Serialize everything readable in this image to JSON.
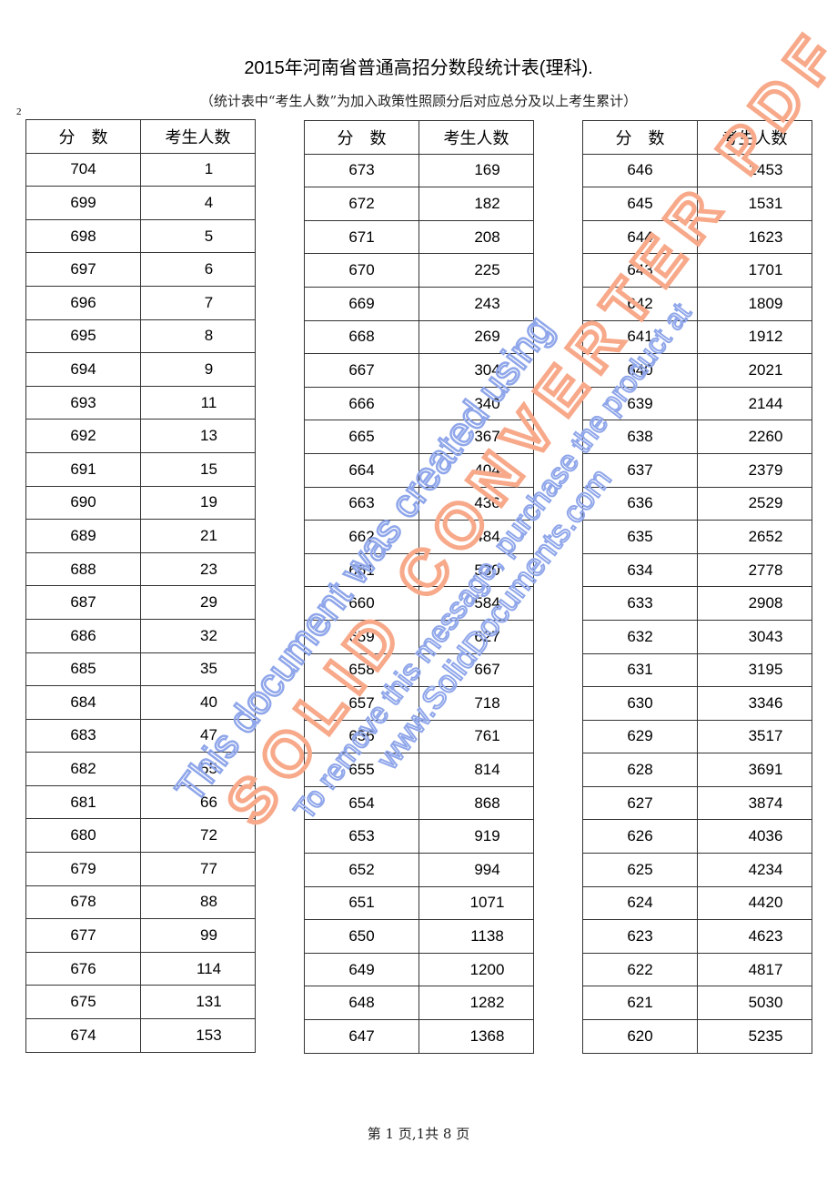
{
  "document": {
    "title": "2015年河南省普通高招分数段统计表(理科).",
    "subtitle": "（统计表中“考生人数”为加入政策性照顾分后对应总分及以上考生累计）",
    "page_mark": "2",
    "footer": "第 1 页,1共 8 页"
  },
  "tables": [
    {
      "headers": [
        "分　数",
        "考生人数"
      ],
      "rows": [
        [
          "704",
          "1"
        ],
        [
          "699",
          "4"
        ],
        [
          "698",
          "5"
        ],
        [
          "697",
          "6"
        ],
        [
          "696",
          "7"
        ],
        [
          "695",
          "8"
        ],
        [
          "694",
          "9"
        ],
        [
          "693",
          "11"
        ],
        [
          "692",
          "13"
        ],
        [
          "691",
          "15"
        ],
        [
          "690",
          "19"
        ],
        [
          "689",
          "21"
        ],
        [
          "688",
          "23"
        ],
        [
          "687",
          "29"
        ],
        [
          "686",
          "32"
        ],
        [
          "685",
          "35"
        ],
        [
          "684",
          "40"
        ],
        [
          "683",
          "47"
        ],
        [
          "682",
          "55"
        ],
        [
          "681",
          "66"
        ],
        [
          "680",
          "72"
        ],
        [
          "679",
          "77"
        ],
        [
          "678",
          "88"
        ],
        [
          "677",
          "99"
        ],
        [
          "676",
          "114"
        ],
        [
          "675",
          "131"
        ],
        [
          "674",
          "153"
        ]
      ]
    },
    {
      "headers": [
        "分　数",
        "考生人数"
      ],
      "rows": [
        [
          "673",
          "169"
        ],
        [
          "672",
          "182"
        ],
        [
          "671",
          "208"
        ],
        [
          "670",
          "225"
        ],
        [
          "669",
          "243"
        ],
        [
          "668",
          "269"
        ],
        [
          "667",
          "304"
        ],
        [
          "666",
          "340"
        ],
        [
          "665",
          "367"
        ],
        [
          "664",
          "404"
        ],
        [
          "663",
          "436"
        ],
        [
          "662",
          "484"
        ],
        [
          "661",
          "530"
        ],
        [
          "660",
          "584"
        ],
        [
          "659",
          "627"
        ],
        [
          "658",
          "667"
        ],
        [
          "657",
          "718"
        ],
        [
          "656",
          "761"
        ],
        [
          "655",
          "814"
        ],
        [
          "654",
          "868"
        ],
        [
          "653",
          "919"
        ],
        [
          "652",
          "994"
        ],
        [
          "651",
          "1071"
        ],
        [
          "650",
          "1138"
        ],
        [
          "649",
          "1200"
        ],
        [
          "648",
          "1282"
        ],
        [
          "647",
          "1368"
        ]
      ]
    },
    {
      "headers": [
        "分　数",
        "考生人数"
      ],
      "rows": [
        [
          "646",
          "1453"
        ],
        [
          "645",
          "1531"
        ],
        [
          "644",
          "1623"
        ],
        [
          "643",
          "1701"
        ],
        [
          "642",
          "1809"
        ],
        [
          "641",
          "1912"
        ],
        [
          "640",
          "2021"
        ],
        [
          "639",
          "2144"
        ],
        [
          "638",
          "2260"
        ],
        [
          "637",
          "2379"
        ],
        [
          "636",
          "2529"
        ],
        [
          "635",
          "2652"
        ],
        [
          "634",
          "2778"
        ],
        [
          "633",
          "2908"
        ],
        [
          "632",
          "3043"
        ],
        [
          "631",
          "3195"
        ],
        [
          "630",
          "3346"
        ],
        [
          "629",
          "3517"
        ],
        [
          "628",
          "3691"
        ],
        [
          "627",
          "3874"
        ],
        [
          "626",
          "4036"
        ],
        [
          "625",
          "4234"
        ],
        [
          "624",
          "4420"
        ],
        [
          "623",
          "4623"
        ],
        [
          "622",
          "4817"
        ],
        [
          "621",
          "5030"
        ],
        [
          "620",
          "5235"
        ]
      ]
    }
  ],
  "watermark": {
    "line1": "This document was created using",
    "line2": "SOLID CONVERTER PDF",
    "line3": "To remove this message, purchase the product at",
    "line4": "www.SolidDocuments.com",
    "colors": {
      "blue": "#9fb4ee",
      "orange": "#f9b49a"
    }
  }
}
